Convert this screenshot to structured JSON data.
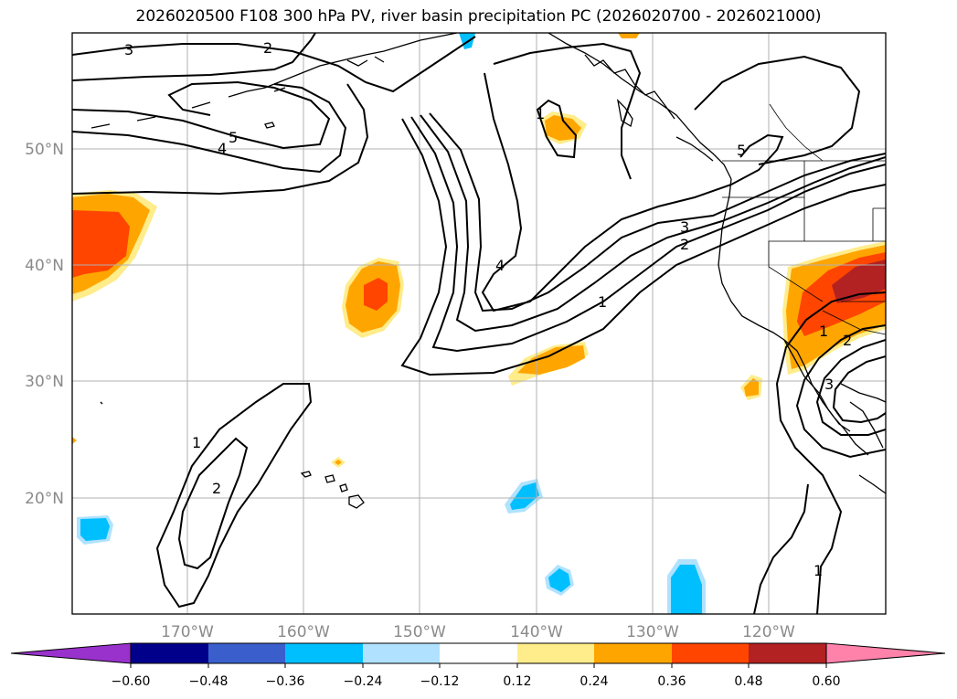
{
  "title": "2026020500 F108 300 hPa PV, river basin precipitation PC (2026020700 - 2026021000)",
  "map": {
    "lon_range": [
      -180,
      -110
    ],
    "lat_range": [
      10,
      60
    ],
    "lat_labels": [
      "50°N",
      "40°N",
      "30°N",
      "20°N"
    ],
    "lon_labels": [
      "170°W",
      "160°W",
      "150°W",
      "140°W",
      "130°W",
      "120°W"
    ],
    "contour_labels": [
      "3",
      "2",
      "5",
      "4",
      "5",
      "3",
      "2",
      "4",
      "1",
      "1",
      "2",
      "1",
      "2",
      "1",
      "3",
      "1"
    ]
  },
  "colorbar": {
    "colors": [
      "#9932cc",
      "#00008b",
      "#3a5fcd",
      "#00bfff",
      "#b0e2ff",
      "#ffffff",
      "#ffec8b",
      "#ffa500",
      "#ff4500",
      "#b22222",
      "#ff82ab"
    ],
    "tick_labels": [
      "−0.60",
      "−0.48",
      "−0.36",
      "−0.24",
      "−0.12",
      "0.12",
      "0.24",
      "0.36",
      "0.48",
      "0.60"
    ]
  }
}
